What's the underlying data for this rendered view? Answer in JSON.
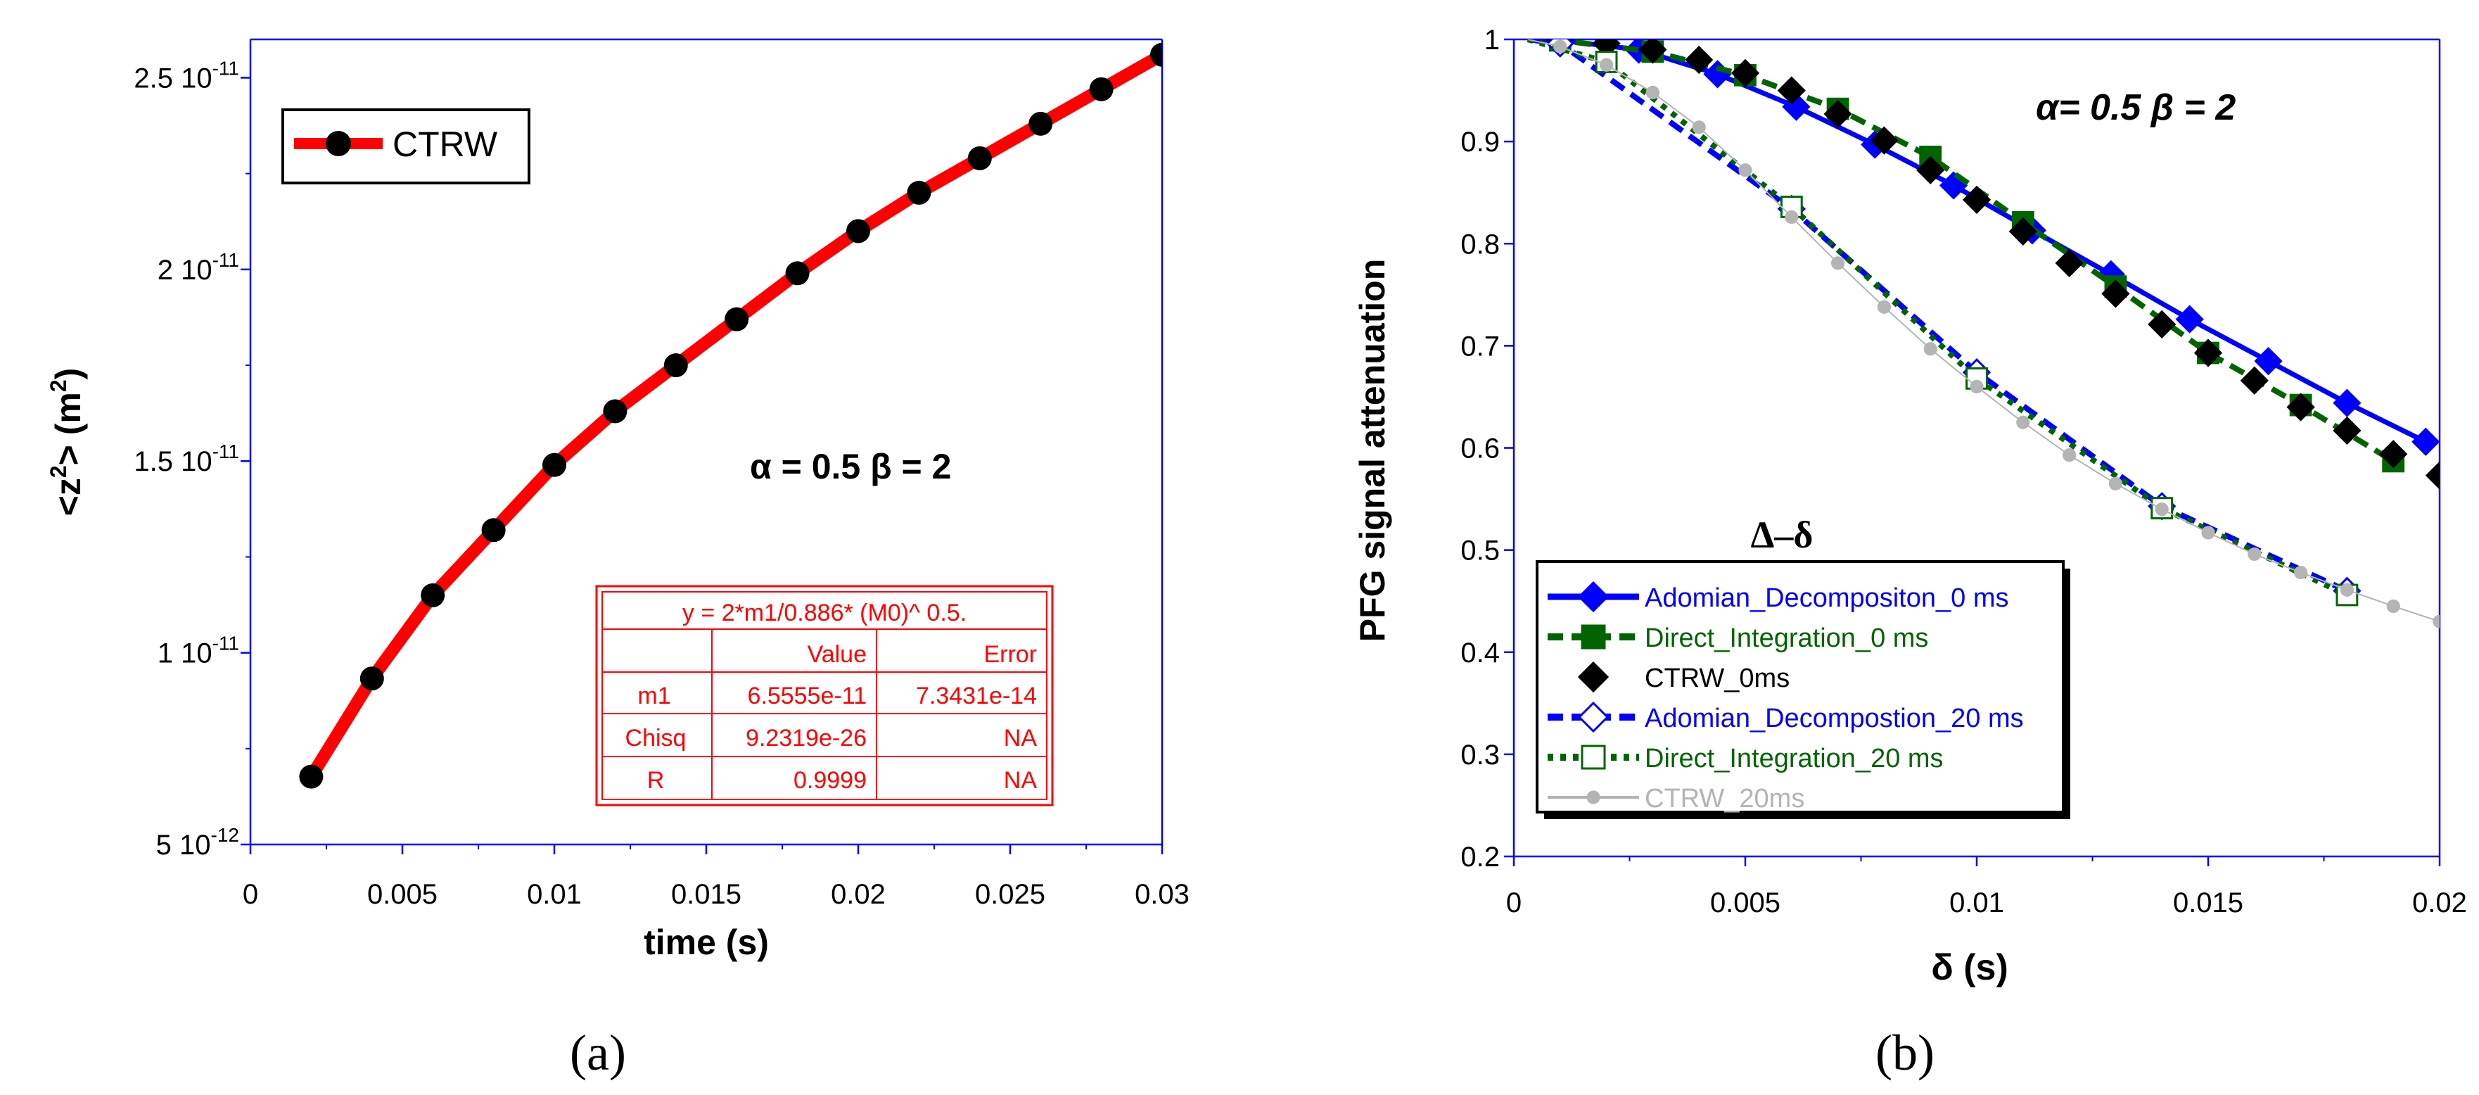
{
  "panel_a": {
    "caption": "(a)",
    "chart_data": {
      "type": "line",
      "xlabel": "time (s)",
      "ylabel_parts": [
        "<z",
        "2",
        "> (m",
        "2",
        ")"
      ],
      "xlim": [
        0,
        0.03
      ],
      "ylim": [
        5e-12,
        2.6e-11
      ],
      "x_ticks": [
        0,
        0.005,
        0.01,
        0.015,
        0.02,
        0.025,
        0.03
      ],
      "x_tick_labels": [
        "0",
        "0.005",
        "0.01",
        "0.015",
        "0.02",
        "0.025",
        "0.03"
      ],
      "y_ticks": [
        5e-12,
        1e-11,
        1.5e-11,
        2e-11,
        2.5e-11
      ],
      "y_tick_mantissa": [
        "5",
        "1",
        "1.5",
        "2",
        "2.5"
      ],
      "y_tick_exponent": [
        "-12",
        "-11",
        "-11",
        "-11",
        "-11"
      ],
      "y_tick_base": "10",
      "legend": "CTRW",
      "annotation": "α = 0.5  β = 2",
      "series": [
        {
          "name": "CTRW",
          "color": "#ff0000",
          "marker_color": "#000000",
          "x": [
            0.002,
            0.004,
            0.006,
            0.008,
            0.01,
            0.012,
            0.014,
            0.016,
            0.018,
            0.02,
            0.022,
            0.024,
            0.026,
            0.028,
            0.03
          ],
          "y": [
            6.77e-12,
            9.33e-12,
            1.15e-11,
            1.32e-11,
            1.49e-11,
            1.63e-11,
            1.75e-11,
            1.87e-11,
            1.99e-11,
            2.1e-11,
            2.2e-11,
            2.29e-11,
            2.38e-11,
            2.47e-11,
            2.56e-11
          ]
        }
      ],
      "fit_table": {
        "equation": "y = 2*m1/0.886* (M0)^ 0.5.",
        "header": [
          "",
          "Value",
          "Error"
        ],
        "rows": [
          [
            "m1",
            "6.5555e-11",
            "7.3431e-14"
          ],
          [
            "Chisq",
            "9.2319e-26",
            "NA"
          ],
          [
            "R",
            "0.9999",
            "NA"
          ]
        ]
      }
    }
  },
  "panel_b": {
    "caption": "(b)",
    "chart_data": {
      "type": "line",
      "xlabel": "δ (s)",
      "ylabel": "PFG signal attenuation",
      "xlim": [
        0,
        0.02
      ],
      "ylim": [
        0.2,
        1.0
      ],
      "x_ticks": [
        0,
        0.005,
        0.01,
        0.015,
        0.02
      ],
      "x_tick_labels": [
        "0",
        "0.005",
        "0.01",
        "0.015",
        "0.02"
      ],
      "y_ticks": [
        0.2,
        0.3,
        0.4,
        0.5,
        0.6,
        0.7,
        0.8,
        0.9,
        1.0
      ],
      "y_tick_labels": [
        "0.2",
        "0.3",
        "0.4",
        "0.5",
        "0.6",
        "0.7",
        "0.8",
        "0.9",
        "1"
      ],
      "annotation": "α= 0.5 β = 2",
      "legend_title": "Δ–δ",
      "series": [
        {
          "name": "Adomian_Decompositon_0 ms",
          "color": "#0000ff",
          "line": "solid",
          "marker": "diamond-filled",
          "x": [
            0.001,
            0.0027,
            0.0044,
            0.0061,
            0.0078,
            0.0095,
            0.0112,
            0.0129,
            0.0146,
            0.0163,
            0.018,
            0.0197
          ],
          "y": [
            0.999,
            0.99,
            0.966,
            0.934,
            0.897,
            0.857,
            0.813,
            0.77,
            0.726,
            0.685,
            0.644,
            0.606
          ]
        },
        {
          "name": "Direct_Integration_0 ms",
          "color": "#006400",
          "line": "dashed",
          "marker": "square-filled",
          "x": [
            0.001,
            0.003,
            0.005,
            0.007,
            0.009,
            0.011,
            0.013,
            0.015,
            0.017,
            0.019
          ],
          "y": [
            0.999,
            0.988,
            0.965,
            0.932,
            0.885,
            0.821,
            0.758,
            0.693,
            0.642,
            0.587
          ]
        },
        {
          "name": "CTRW_0ms",
          "color": "#000000",
          "line": "none",
          "marker": "diamond-filled",
          "x": [
            0.001,
            0.002,
            0.003,
            0.004,
            0.005,
            0.006,
            0.007,
            0.008,
            0.009,
            0.01,
            0.011,
            0.012,
            0.013,
            0.014,
            0.015,
            0.016,
            0.017,
            0.018,
            0.019,
            0.02
          ],
          "y": [
            1.0,
            0.996,
            0.99,
            0.98,
            0.967,
            0.95,
            0.927,
            0.901,
            0.872,
            0.843,
            0.812,
            0.781,
            0.751,
            0.721,
            0.693,
            0.666,
            0.64,
            0.617,
            0.594,
            0.573
          ]
        },
        {
          "name": "Adomian_Decompostion_20 ms",
          "color": "#0000ff",
          "line": "dashed",
          "marker": "diamond-open",
          "x": [
            0.001,
            0.006,
            0.01,
            0.014,
            0.018
          ],
          "y": [
            0.996,
            0.834,
            0.674,
            0.543,
            0.46
          ]
        },
        {
          "name": "Direct_Integration_20 ms",
          "color": "#006400",
          "line": "dotted",
          "marker": "square-open",
          "x": [
            0.002,
            0.006,
            0.01,
            0.014,
            0.018
          ],
          "y": [
            0.978,
            0.836,
            0.668,
            0.541,
            0.456
          ]
        },
        {
          "name": "CTRW_20ms",
          "color": "#b4b4b4",
          "line": "solid-thin",
          "marker": "circle",
          "x": [
            0.001,
            0.002,
            0.003,
            0.004,
            0.005,
            0.006,
            0.007,
            0.008,
            0.009,
            0.01,
            0.011,
            0.012,
            0.013,
            0.014,
            0.015,
            0.016,
            0.017,
            0.018,
            0.019,
            0.02
          ],
          "y": [
            0.993,
            0.975,
            0.948,
            0.914,
            0.872,
            0.826,
            0.781,
            0.738,
            0.697,
            0.66,
            0.625,
            0.593,
            0.565,
            0.54,
            0.517,
            0.496,
            0.478,
            0.461,
            0.445,
            0.43
          ]
        }
      ]
    }
  }
}
